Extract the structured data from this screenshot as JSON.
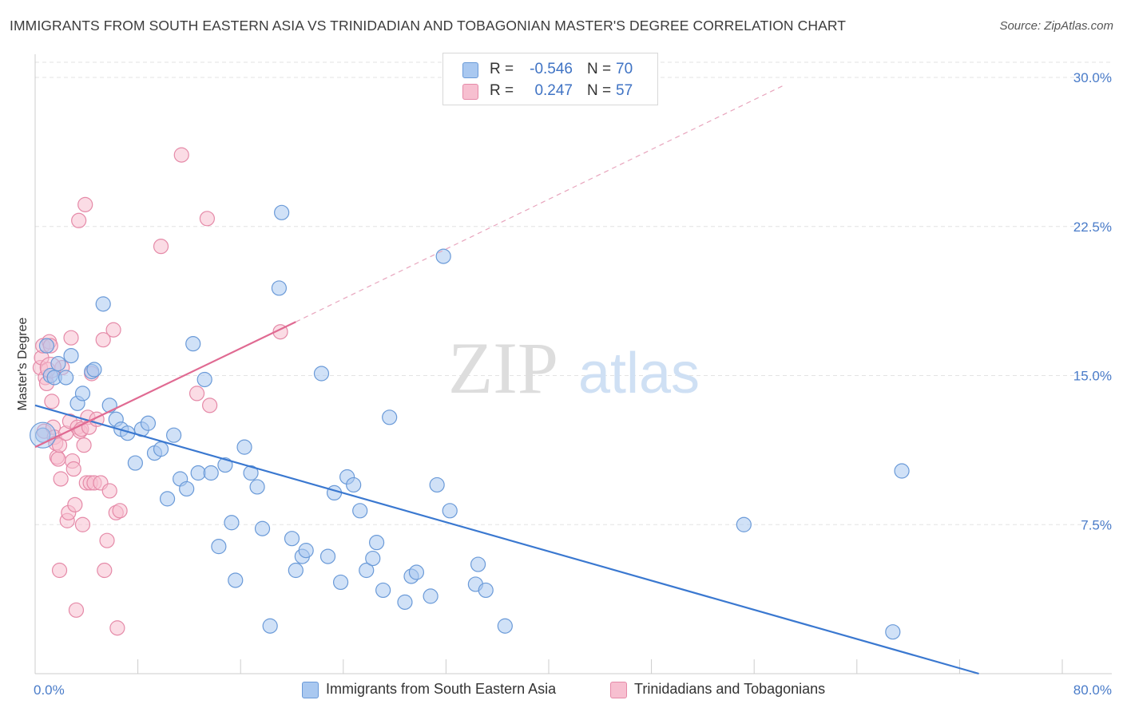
{
  "header": {
    "title": "IMMIGRANTS FROM SOUTH EASTERN ASIA VS TRINIDADIAN AND TOBAGONIAN MASTER'S DEGREE CORRELATION CHART",
    "source": "Source: ZipAtlas.com"
  },
  "watermark": {
    "zip": "ZIP",
    "atlas": "atlas"
  },
  "legend": {
    "rows": [
      {
        "r_label": "R =",
        "r_value": "-0.546",
        "n_label": "N =",
        "n_value": "70",
        "color": "#a9c8f0",
        "border": "#6a9ad8"
      },
      {
        "r_label": "R =",
        "r_value": "0.247",
        "n_label": "N =",
        "n_value": "57",
        "color": "#f7bfd0",
        "border": "#e58aa8"
      }
    ]
  },
  "bottom_legend": {
    "items": [
      {
        "label": "Immigrants from South Eastern Asia",
        "color": "#a9c8f0",
        "border": "#6a9ad8"
      },
      {
        "label": "Trinidadians and Tobagonians",
        "color": "#f7bfd0",
        "border": "#e58aa8"
      }
    ]
  },
  "chart_data": {
    "type": "scatter",
    "title": "IMMIGRANTS FROM SOUTH EASTERN ASIA VS TRINIDADIAN AND TOBAGONIAN MASTER'S DEGREE CORRELATION CHART",
    "xlabel": "",
    "ylabel": "Master's Degree",
    "xlim": [
      0,
      80
    ],
    "ylim": [
      0,
      30
    ],
    "x_tick_labels": [
      "0.0%",
      "80.0%"
    ],
    "y_ticks": [
      7.5,
      15.0,
      22.5,
      30.0
    ],
    "y_tick_labels": [
      "7.5%",
      "15.0%",
      "22.5%",
      "30.0%"
    ],
    "grid": "horizontal dashed",
    "series": [
      {
        "name": "Immigrants from South Eastern Asia",
        "color": "#6a9ad8",
        "fill": "#a9c8f0",
        "trend": {
          "x": [
            0,
            73.5
          ],
          "y": [
            13.5,
            0
          ],
          "style": "solid",
          "color": "#3a78d0"
        },
        "points": [
          [
            0.6,
            12.0
          ],
          [
            0.9,
            16.5
          ],
          [
            1.2,
            15.0
          ],
          [
            1.5,
            14.9
          ],
          [
            1.8,
            15.6
          ],
          [
            2.4,
            14.9
          ],
          [
            2.8,
            16.0
          ],
          [
            3.3,
            13.6
          ],
          [
            3.7,
            14.1
          ],
          [
            4.4,
            15.2
          ],
          [
            4.6,
            15.3
          ],
          [
            5.3,
            18.6
          ],
          [
            5.8,
            13.5
          ],
          [
            6.3,
            12.8
          ],
          [
            6.7,
            12.3
          ],
          [
            7.2,
            12.1
          ],
          [
            7.8,
            10.6
          ],
          [
            8.3,
            12.3
          ],
          [
            8.8,
            12.6
          ],
          [
            9.3,
            11.1
          ],
          [
            9.8,
            11.3
          ],
          [
            10.3,
            8.8
          ],
          [
            10.8,
            12.0
          ],
          [
            11.3,
            9.8
          ],
          [
            11.8,
            9.3
          ],
          [
            12.3,
            16.6
          ],
          [
            12.7,
            10.1
          ],
          [
            13.2,
            14.8
          ],
          [
            13.7,
            10.1
          ],
          [
            14.3,
            6.4
          ],
          [
            14.8,
            10.5
          ],
          [
            15.3,
            7.6
          ],
          [
            15.6,
            4.7
          ],
          [
            16.3,
            11.4
          ],
          [
            16.8,
            10.1
          ],
          [
            17.3,
            9.4
          ],
          [
            17.7,
            7.3
          ],
          [
            18.3,
            2.4
          ],
          [
            19.0,
            19.4
          ],
          [
            19.2,
            23.2
          ],
          [
            20.0,
            6.8
          ],
          [
            20.3,
            5.2
          ],
          [
            20.8,
            5.9
          ],
          [
            21.1,
            6.2
          ],
          [
            22.3,
            15.1
          ],
          [
            22.8,
            5.9
          ],
          [
            23.3,
            9.1
          ],
          [
            23.8,
            4.6
          ],
          [
            24.3,
            9.9
          ],
          [
            24.8,
            9.5
          ],
          [
            25.3,
            8.2
          ],
          [
            25.8,
            5.2
          ],
          [
            26.3,
            5.8
          ],
          [
            26.6,
            6.6
          ],
          [
            27.1,
            4.2
          ],
          [
            27.6,
            12.9
          ],
          [
            28.8,
            3.6
          ],
          [
            29.3,
            4.9
          ],
          [
            29.7,
            5.1
          ],
          [
            30.8,
            3.9
          ],
          [
            31.3,
            9.5
          ],
          [
            31.8,
            21.0
          ],
          [
            32.3,
            8.2
          ],
          [
            34.3,
            4.5
          ],
          [
            34.5,
            5.5
          ],
          [
            35.1,
            4.2
          ],
          [
            36.6,
            2.4
          ],
          [
            55.2,
            7.5
          ],
          [
            66.8,
            2.1
          ],
          [
            67.5,
            10.2
          ]
        ]
      },
      {
        "name": "Trinidadians and Tobagonians",
        "color": "#e58aa8",
        "fill": "#f7bfd0",
        "trend": {
          "x": [
            0,
            20.3
          ],
          "y": [
            11.4,
            17.7
          ],
          "x_dashed_to": 58.3,
          "y_dashed_to": 29.6,
          "style": "solid then dashed",
          "color": "#e06a92"
        },
        "points": [
          [
            0.4,
            15.4
          ],
          [
            0.5,
            15.9
          ],
          [
            0.6,
            16.5
          ],
          [
            0.7,
            12.2
          ],
          [
            0.8,
            14.9
          ],
          [
            0.9,
            14.6
          ],
          [
            1.0,
            15.3
          ],
          [
            1.1,
            16.7
          ],
          [
            1.2,
            16.5
          ],
          [
            1.3,
            13.7
          ],
          [
            1.4,
            12.4
          ],
          [
            1.5,
            11.9
          ],
          [
            1.6,
            11.6
          ],
          [
            1.7,
            10.9
          ],
          [
            1.8,
            10.8
          ],
          [
            1.9,
            11.5
          ],
          [
            2.0,
            9.8
          ],
          [
            2.1,
            15.4
          ],
          [
            2.4,
            12.1
          ],
          [
            2.5,
            7.7
          ],
          [
            2.6,
            8.1
          ],
          [
            2.7,
            12.7
          ],
          [
            2.8,
            16.9
          ],
          [
            2.9,
            10.7
          ],
          [
            3.0,
            10.3
          ],
          [
            3.1,
            8.5
          ],
          [
            3.2,
            3.2
          ],
          [
            3.3,
            12.4
          ],
          [
            3.4,
            22.8
          ],
          [
            3.5,
            12.2
          ],
          [
            3.6,
            12.3
          ],
          [
            3.7,
            7.5
          ],
          [
            3.8,
            11.5
          ],
          [
            3.9,
            23.6
          ],
          [
            4.0,
            9.6
          ],
          [
            4.1,
            12.9
          ],
          [
            4.2,
            12.4
          ],
          [
            4.3,
            9.6
          ],
          [
            4.4,
            15.1
          ],
          [
            4.6,
            9.6
          ],
          [
            4.8,
            12.8
          ],
          [
            5.1,
            9.6
          ],
          [
            5.3,
            16.8
          ],
          [
            5.4,
            5.2
          ],
          [
            5.6,
            6.7
          ],
          [
            5.8,
            9.2
          ],
          [
            6.1,
            17.3
          ],
          [
            6.3,
            8.1
          ],
          [
            6.4,
            2.3
          ],
          [
            6.6,
            8.2
          ],
          [
            9.8,
            21.5
          ],
          [
            11.4,
            26.1
          ],
          [
            12.6,
            14.1
          ],
          [
            13.4,
            22.9
          ],
          [
            13.6,
            13.5
          ],
          [
            19.1,
            17.2
          ],
          [
            1.9,
            5.2
          ]
        ]
      }
    ]
  }
}
